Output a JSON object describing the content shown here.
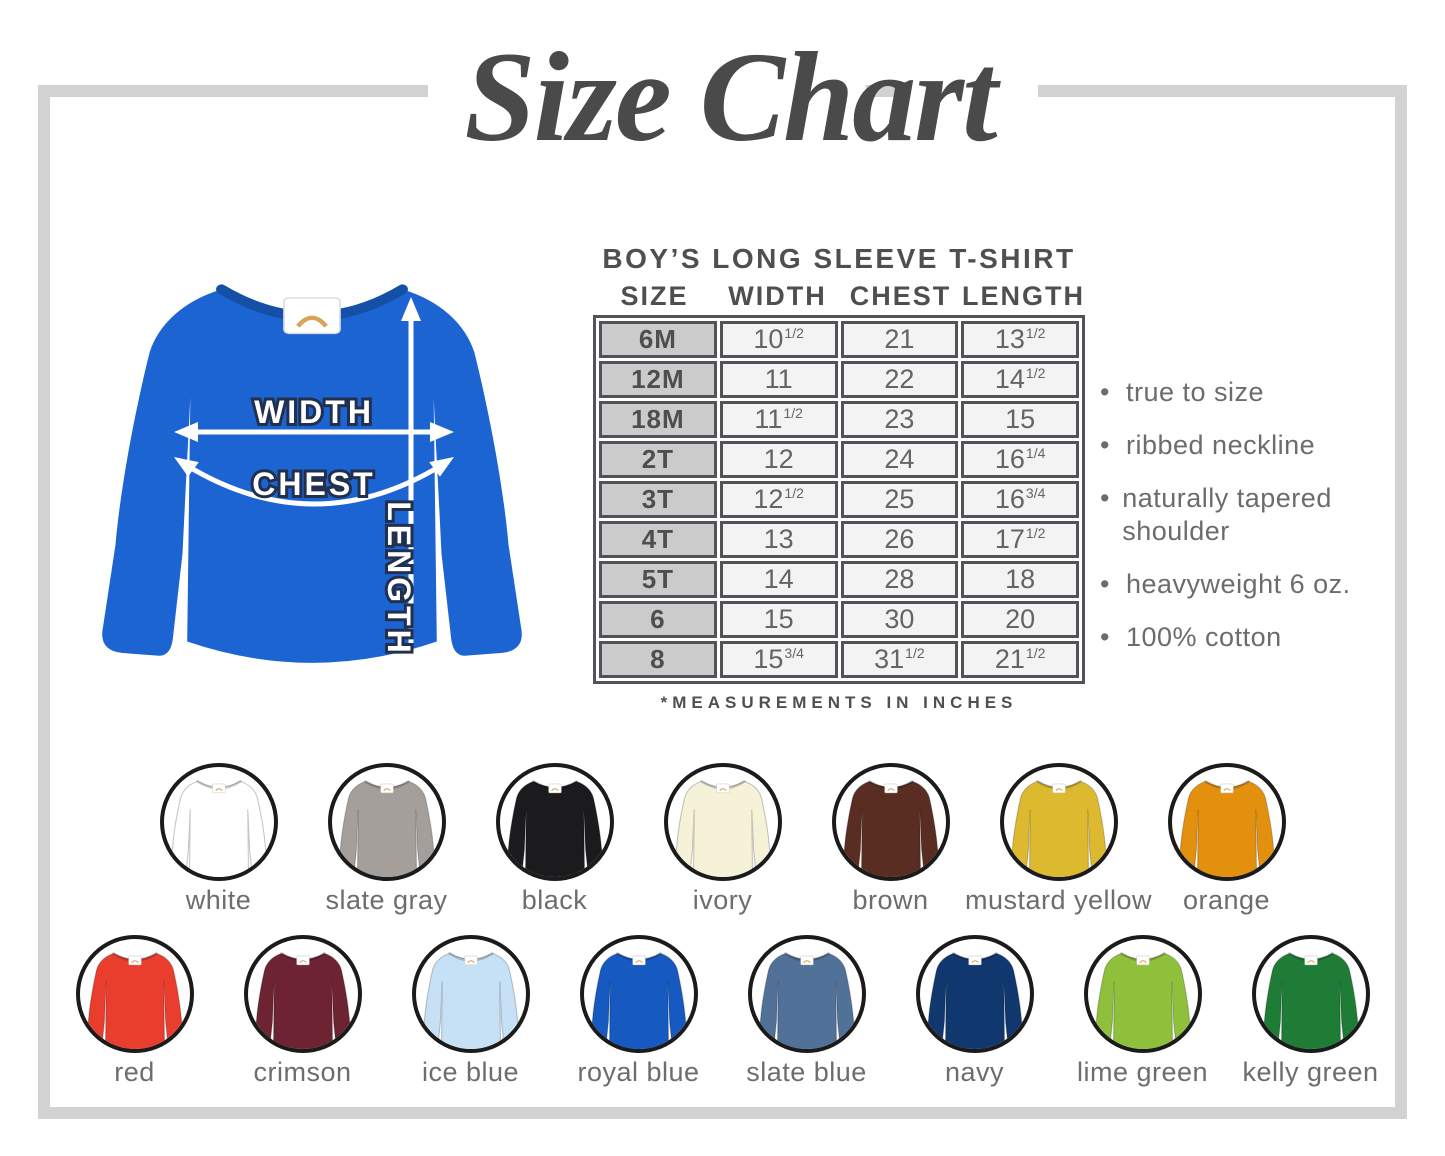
{
  "page_title": "Size Chart",
  "frame_color": "#d2d2d2",
  "diagram": {
    "shirt_color": "#1d64d3",
    "labels": {
      "width": "WIDTH",
      "chest": "CHEST",
      "length": "LENGTH"
    }
  },
  "size_chart": {
    "heading": "BOY’S LONG SLEEVE T-SHIRT",
    "columns": [
      "SIZE",
      "WIDTH",
      "CHEST",
      "LENGTH"
    ],
    "rows": [
      {
        "size": "6M",
        "width": {
          "w": "10",
          "f": "1/2"
        },
        "chest": {
          "w": "21"
        },
        "length": {
          "w": "13",
          "f": "1/2"
        }
      },
      {
        "size": "12M",
        "width": {
          "w": "11"
        },
        "chest": {
          "w": "22"
        },
        "length": {
          "w": "14",
          "f": "1/2"
        }
      },
      {
        "size": "18M",
        "width": {
          "w": "11",
          "f": "1/2"
        },
        "chest": {
          "w": "23"
        },
        "length": {
          "w": "15"
        }
      },
      {
        "size": "2T",
        "width": {
          "w": "12"
        },
        "chest": {
          "w": "24"
        },
        "length": {
          "w": "16",
          "f": "1/4"
        }
      },
      {
        "size": "3T",
        "width": {
          "w": "12",
          "f": "1/2"
        },
        "chest": {
          "w": "25"
        },
        "length": {
          "w": "16",
          "f": "3/4"
        }
      },
      {
        "size": "4T",
        "width": {
          "w": "13"
        },
        "chest": {
          "w": "26"
        },
        "length": {
          "w": "17",
          "f": "1/2"
        }
      },
      {
        "size": "5T",
        "width": {
          "w": "14"
        },
        "chest": {
          "w": "28"
        },
        "length": {
          "w": "18"
        }
      },
      {
        "size": "6",
        "width": {
          "w": "15"
        },
        "chest": {
          "w": "30"
        },
        "length": {
          "w": "20"
        }
      },
      {
        "size": "8",
        "width": {
          "w": "15",
          "f": "3/4"
        },
        "chest": {
          "w": "31",
          "f": "1/2"
        },
        "length": {
          "w": "21",
          "f": "1/2"
        }
      }
    ],
    "note": "*MEASUREMENTS IN INCHES"
  },
  "features": [
    "true to size",
    "ribbed neckline",
    "naturally tapered shoulder",
    "heavyweight 6 oz.",
    "100% cotton"
  ],
  "color_options": {
    "row1": [
      {
        "name": "white",
        "hex": "#ffffff"
      },
      {
        "name": "slate gray",
        "hex": "#a49f9a"
      },
      {
        "name": "black",
        "hex": "#1b1b1d"
      },
      {
        "name": "ivory",
        "hex": "#f6f2d8"
      },
      {
        "name": "brown",
        "hex": "#5a2d22"
      },
      {
        "name": "mustard yellow",
        "hex": "#dcb92f"
      },
      {
        "name": "orange",
        "hex": "#e3900e"
      }
    ],
    "row2": [
      {
        "name": "red",
        "hex": "#e93d2e"
      },
      {
        "name": "crimson",
        "hex": "#6d2331"
      },
      {
        "name": "ice blue",
        "hex": "#c6e1f6"
      },
      {
        "name": "royal blue",
        "hex": "#1559c1"
      },
      {
        "name": "slate blue",
        "hex": "#527199"
      },
      {
        "name": "navy",
        "hex": "#11386e"
      },
      {
        "name": "lime green",
        "hex": "#8ec03c"
      },
      {
        "name": "kelly green",
        "hex": "#1e7c36"
      }
    ]
  }
}
